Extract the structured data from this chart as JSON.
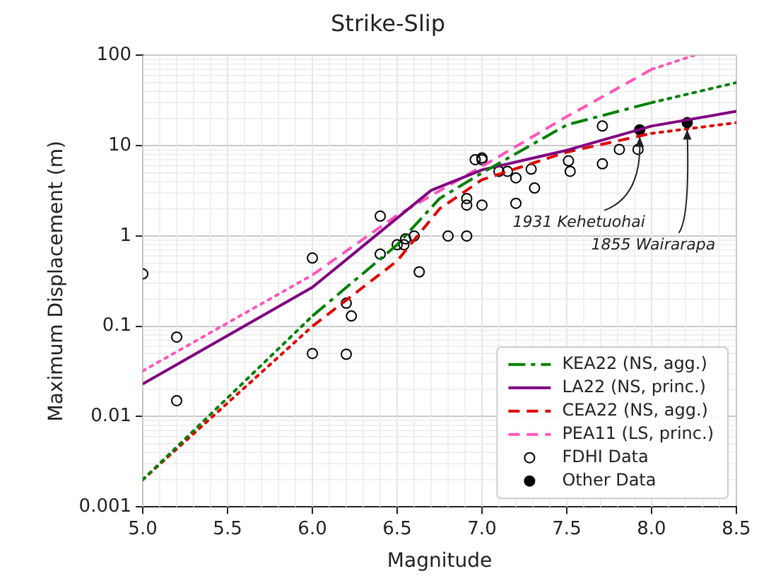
{
  "chart_data": {
    "type": "line",
    "title": "Strike-Slip",
    "xlabel": "Magnitude",
    "ylabel": "Maximum Displacement (m)",
    "log": "y",
    "grid": true,
    "legend": "bottom right",
    "xlim": [
      5.0,
      8.5
    ],
    "xticks": [
      {
        "value": 5,
        "label": "5.0"
      },
      5.5,
      {
        "value": 6,
        "label": "6.0"
      },
      6.5,
      {
        "value": 7,
        "label": "7.0"
      },
      7.5,
      {
        "value": 8,
        "label": "8.0"
      },
      8.5
    ],
    "ylim": [
      0.001,
      100
    ],
    "yticks": [
      0.001,
      0.01,
      0.1,
      1,
      10,
      100
    ],
    "series": [
      {
        "name": "KEA22 (NS, agg.)",
        "color": "#008000",
        "line_style": "dashdot",
        "x": [
          6.0,
          6.5,
          6.75,
          7.0,
          7.5,
          8.0
        ],
        "values": [
          0.13,
          0.8,
          2.6,
          5,
          17,
          30
        ]
      },
      {
        "name": "LA22 (NS, princ.)",
        "color": "#800080",
        "line_style": "solid",
        "x": [
          5.0,
          6.0,
          6.7,
          7.0,
          7.5,
          8.0,
          8.5
        ],
        "values": [
          0.023,
          0.27,
          3.2,
          5.4,
          8.9,
          16.5,
          24
        ]
      },
      {
        "name": "CEA22 (NS, agg.)",
        "color": "#e00000",
        "line_style": "dashed",
        "x": [
          6.0,
          6.5,
          6.75,
          7.0,
          7.5,
          8.0
        ],
        "values": [
          0.1,
          0.53,
          2.0,
          4.2,
          8.5,
          13.7
        ]
      },
      {
        "name": "PEA11 (LS, princ.)",
        "color": "#ff55bb",
        "line_style": "dashed",
        "x": [
          6.0,
          6.5,
          7.0,
          7.5,
          8.0
        ],
        "values": [
          0.37,
          1.7,
          5.9,
          21,
          70
        ]
      },
      {
        "name": "FDHI Data",
        "type": "scatter",
        "color": "#000000",
        "marker": "circle-open",
        "x": [
          5.0,
          5.2,
          5.2,
          6.0,
          6.0,
          6.2,
          6.23,
          6.2,
          6.4,
          6.4,
          6.5,
          6.54,
          6.55,
          6.6,
          6.63,
          6.8,
          6.91,
          6.91,
          6.91,
          7.0,
          6.96,
          7.0,
          7.0,
          7.1,
          7.15,
          7.2,
          7.2,
          7.29,
          7.31,
          7.51,
          7.52,
          7.71,
          7.71,
          7.81,
          7.92
        ],
        "values": [
          0.38,
          0.076,
          0.015,
          0.57,
          0.05,
          0.18,
          0.13,
          0.049,
          1.66,
          0.63,
          0.8,
          0.8,
          0.93,
          1.0,
          0.4,
          1.0,
          1.0,
          2.6,
          2.2,
          2.2,
          7,
          7.3,
          7,
          5.2,
          5.2,
          4.4,
          2.3,
          5.5,
          3.4,
          6.8,
          5.2,
          16.5,
          6.3,
          9.1,
          9.1
        ]
      },
      {
        "name": "Other Data",
        "type": "scatter",
        "color": "#000000",
        "marker": "circle",
        "x": [
          7.93,
          8.21
        ],
        "values": [
          15,
          18
        ]
      },
      {
        "color": "#008000",
        "line_style": "dotted",
        "x": [
          5.0,
          6.0,
          7.0,
          8.0,
          8.5
        ],
        "values": [
          0.002,
          0.13,
          null,
          30,
          50
        ]
      },
      {
        "color": "#e00000",
        "line_style": "dotted",
        "x": [
          5.0,
          6.0,
          7.0,
          8.0,
          8.5
        ],
        "values": [
          0.002,
          0.1,
          null,
          13.7,
          18
        ]
      },
      {
        "color": "#ff55bb",
        "line_style": "dotted",
        "x": [
          5.0,
          6.0,
          7.0,
          8.0,
          8.25
        ],
        "values": [
          0.032,
          0.37,
          null,
          70,
          100
        ]
      }
    ],
    "annotations": [
      {
        "text": "1931 Kehetuohai",
        "x": 7.93,
        "y": 15
      },
      {
        "text": "1855 Wairarapa",
        "x": 8.21,
        "y": 18
      }
    ]
  }
}
